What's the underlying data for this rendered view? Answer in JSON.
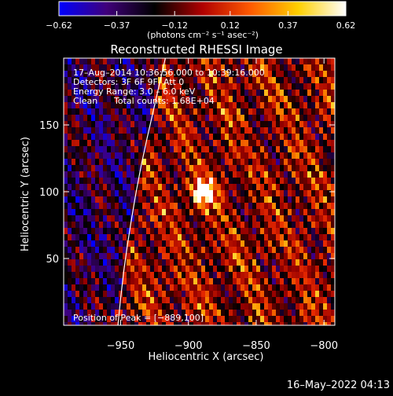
{
  "chart_data": {
    "type": "heatmap",
    "title": "Reconstructed RHESSI Image",
    "xlabel": "Heliocentric X (arcsec)",
    "ylabel": "Heliocentric Y (arcsec)",
    "xlim": [
      -992,
      -792
    ],
    "ylim": [
      0,
      200
    ],
    "x_ticks": [
      -950,
      -900,
      -850,
      -800
    ],
    "x_tick_labels": [
      "−950",
      "−900",
      "−850",
      "−800"
    ],
    "y_ticks": [
      50,
      100,
      150
    ],
    "y_tick_labels": [
      "50",
      "100",
      "150"
    ],
    "colorbar": {
      "min": -0.62,
      "max": 0.62,
      "ticks": [
        -0.62,
        -0.37,
        -0.12,
        0.12,
        0.37,
        0.62
      ],
      "tick_labels": [
        "−0.62",
        "−0.37",
        "−0.12",
        "0.12",
        "0.37",
        "0.62"
      ],
      "units": "(photons cm⁻² s⁻¹ asec⁻²)",
      "colors": [
        "#0000ff",
        "#40007a",
        "#000000",
        "#b00000",
        "#ff5a00",
        "#ffd000",
        "#ffffff"
      ]
    },
    "annotations": {
      "time": "17–Aug–2014 10:36:56.000 to 10:39:16.000",
      "detectors": "Detectors: 3F 6F 9F, Att 0",
      "energy": "Energy Range: 3.0 – 6.0 keV",
      "method": "Clean",
      "counts": "Total counts: 1.68E+04",
      "peak": "Position of Peak = [−889,100]"
    },
    "peak": {
      "x": -889,
      "y": 100
    },
    "limb": [
      [
        -952,
        0
      ],
      [
        -948,
        40
      ],
      [
        -942,
        80
      ],
      [
        -935,
        120
      ],
      [
        -926,
        160
      ],
      [
        -917,
        200
      ]
    ],
    "timestamp": "16–May–2022 04:13"
  }
}
